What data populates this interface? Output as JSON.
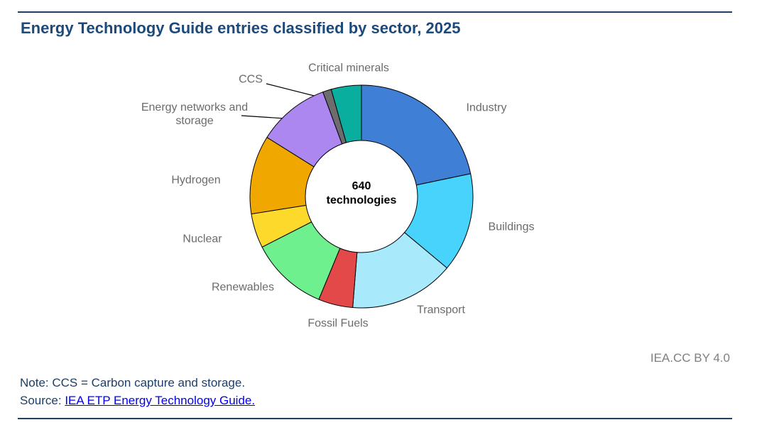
{
  "chart_data": {
    "type": "pie",
    "title": "Energy Technology Guide entries classified by sector, 2025",
    "categories": [
      "Industry",
      "Buildings",
      "Transport",
      "Fossil Fuels",
      "Renewables",
      "Nuclear",
      "Hydrogen",
      "Energy networks and storage",
      "CCS",
      "Critical minerals"
    ],
    "values": [
      139,
      92,
      97,
      32,
      72,
      32,
      73,
      67,
      8,
      28
    ],
    "colors": [
      "#3f7fd6",
      "#47d3fc",
      "#a8e9fc",
      "#e34949",
      "#6ef08f",
      "#fcd92b",
      "#f0a800",
      "#ad87f0",
      "#6d6d6d",
      "#0aae9f"
    ],
    "donut": true,
    "center_label": [
      "640",
      "technologies"
    ],
    "credit": "IEA.CC BY 4.0",
    "note": "Note: CCS = Carbon capture and storage.",
    "source_prefix": "Source:",
    "source_link": "IEA ETP Energy Technology Guide."
  }
}
